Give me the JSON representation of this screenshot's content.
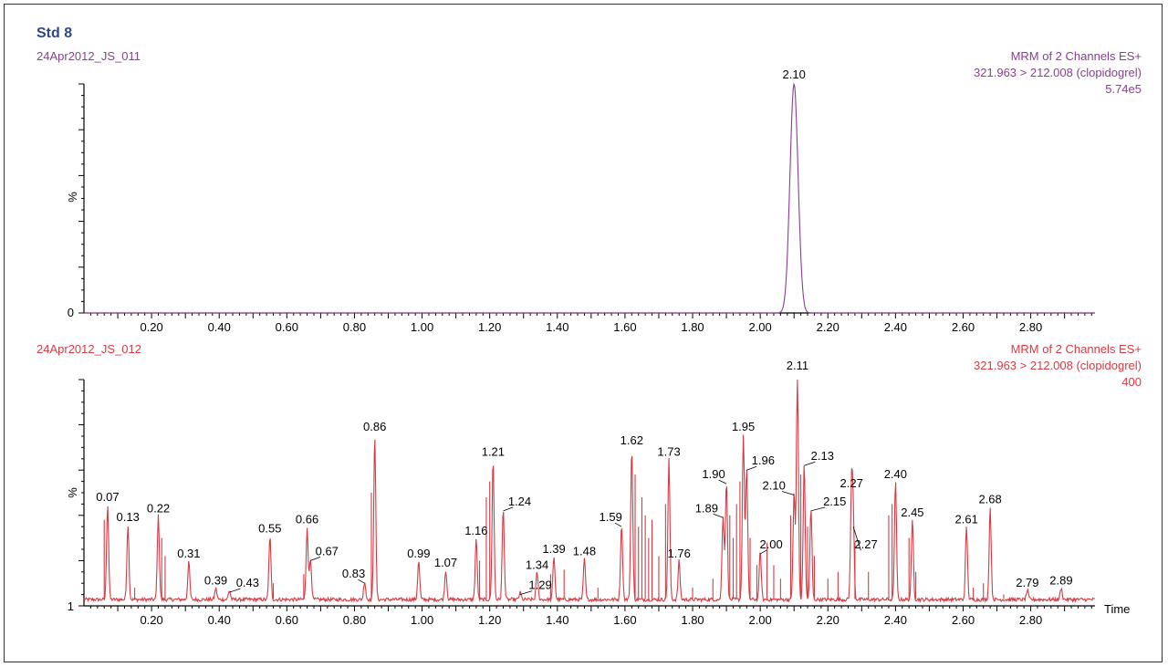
{
  "title": "Std 8",
  "colors": {
    "title": "#2a4a8c",
    "panel1": "#8b3d96",
    "panel2": "#d83a44",
    "axis": "#000000",
    "frame": "#333333"
  },
  "chart_data": [
    {
      "type": "line",
      "sample_name": "24Apr2012_JS_011",
      "header": [
        "MRM of 2 Channels ES+",
        "321.963 > 212.008 (clopidogrel)",
        "5.74e5"
      ],
      "ylabel": "%",
      "y_zero_label": "0",
      "xlim": [
        0,
        2.99
      ],
      "ylim": [
        0,
        100
      ],
      "x_ticks": [
        "0.20",
        "0.40",
        "0.60",
        "0.80",
        "1.00",
        "1.20",
        "1.40",
        "1.60",
        "1.80",
        "2.00",
        "2.20",
        "2.40",
        "2.60",
        "2.80"
      ],
      "baseline": 0,
      "peaks": [
        {
          "rt": 2.1,
          "height": 100,
          "width": 0.012,
          "label": "2.10"
        }
      ]
    },
    {
      "type": "line",
      "sample_name": "24Apr2012_JS_012",
      "header": [
        "MRM of 2 Channels ES+",
        "321.963 > 212.008 (clopidogrel)",
        "400"
      ],
      "ylabel": "%",
      "y_zero_label": "1",
      "xlabel": "Time",
      "xlim": [
        0,
        2.99
      ],
      "ylim": [
        0,
        100
      ],
      "x_ticks": [
        "0.20",
        "0.40",
        "0.60",
        "0.80",
        "1.00",
        "1.20",
        "1.40",
        "1.60",
        "1.80",
        "2.00",
        "2.20",
        "2.40",
        "2.60",
        "2.80"
      ],
      "baseline": 2,
      "peaks": [
        {
          "rt": 0.07,
          "height": 42,
          "width": 0.003,
          "label": "0.07"
        },
        {
          "rt": 0.13,
          "height": 33,
          "width": 0.003,
          "label": "0.13"
        },
        {
          "rt": 0.22,
          "height": 37,
          "width": 0.003,
          "label": "0.22"
        },
        {
          "rt": 0.31,
          "height": 17,
          "width": 0.003,
          "label": "0.31"
        },
        {
          "rt": 0.39,
          "height": 5,
          "width": 0.003,
          "label": "0.39"
        },
        {
          "rt": 0.43,
          "height": 4,
          "width": 0.003,
          "label": "0.43"
        },
        {
          "rt": 0.55,
          "height": 28,
          "width": 0.003,
          "label": "0.55"
        },
        {
          "rt": 0.66,
          "height": 32,
          "width": 0.003,
          "label": "0.66"
        },
        {
          "rt": 0.67,
          "height": 18,
          "width": 0.003,
          "label": "0.67"
        },
        {
          "rt": 0.83,
          "height": 8,
          "width": 0.003,
          "label": "0.83"
        },
        {
          "rt": 0.86,
          "height": 73,
          "width": 0.003,
          "label": "0.86"
        },
        {
          "rt": 0.99,
          "height": 17,
          "width": 0.003,
          "label": "0.99"
        },
        {
          "rt": 1.07,
          "height": 13,
          "width": 0.003,
          "label": "1.07"
        },
        {
          "rt": 1.16,
          "height": 27,
          "width": 0.003,
          "label": "1.16"
        },
        {
          "rt": 1.21,
          "height": 62,
          "width": 0.003,
          "label": "1.21"
        },
        {
          "rt": 1.24,
          "height": 40,
          "width": 0.003,
          "label": "1.24"
        },
        {
          "rt": 1.29,
          "height": 3,
          "width": 0.003,
          "label": "1.29"
        },
        {
          "rt": 1.34,
          "height": 12,
          "width": 0.003,
          "label": "1.34"
        },
        {
          "rt": 1.39,
          "height": 19,
          "width": 0.003,
          "label": "1.39"
        },
        {
          "rt": 1.48,
          "height": 18,
          "width": 0.003,
          "label": "1.48"
        },
        {
          "rt": 1.59,
          "height": 33,
          "width": 0.003,
          "label": "1.59"
        },
        {
          "rt": 1.62,
          "height": 67,
          "width": 0.003,
          "label": "1.62"
        },
        {
          "rt": 1.73,
          "height": 62,
          "width": 0.003,
          "label": "1.73"
        },
        {
          "rt": 1.76,
          "height": 17,
          "width": 0.003,
          "label": "1.76"
        },
        {
          "rt": 1.89,
          "height": 37,
          "width": 0.003,
          "label": "1.89"
        },
        {
          "rt": 1.9,
          "height": 52,
          "width": 0.003,
          "label": "1.90"
        },
        {
          "rt": 1.95,
          "height": 73,
          "width": 0.003,
          "label": "1.95"
        },
        {
          "rt": 1.96,
          "height": 58,
          "width": 0.003,
          "label": "1.96"
        },
        {
          "rt": 2.0,
          "height": 21,
          "width": 0.003,
          "label": "2.00"
        },
        {
          "rt": 2.1,
          "height": 47,
          "width": 0.003,
          "label": "2.10"
        },
        {
          "rt": 2.11,
          "height": 100,
          "width": 0.003,
          "label": "2.11"
        },
        {
          "rt": 2.13,
          "height": 60,
          "width": 0.003,
          "label": "2.13"
        },
        {
          "rt": 2.15,
          "height": 40,
          "width": 0.003,
          "label": "2.15"
        },
        {
          "rt": 2.27,
          "height": 48,
          "width": 0.003,
          "label": "2.27"
        },
        {
          "rt": 2.275,
          "height": 33,
          "width": 0.003,
          "label": "2.27"
        },
        {
          "rt": 2.4,
          "height": 52,
          "width": 0.003,
          "label": "2.40"
        },
        {
          "rt": 2.45,
          "height": 35,
          "width": 0.003,
          "label": "2.45"
        },
        {
          "rt": 2.61,
          "height": 32,
          "width": 0.003,
          "label": "2.61"
        },
        {
          "rt": 2.68,
          "height": 41,
          "width": 0.003,
          "label": "2.68"
        },
        {
          "rt": 2.79,
          "height": 4,
          "width": 0.003,
          "label": "2.79"
        },
        {
          "rt": 2.89,
          "height": 5,
          "width": 0.003,
          "label": "2.89"
        }
      ]
    }
  ]
}
